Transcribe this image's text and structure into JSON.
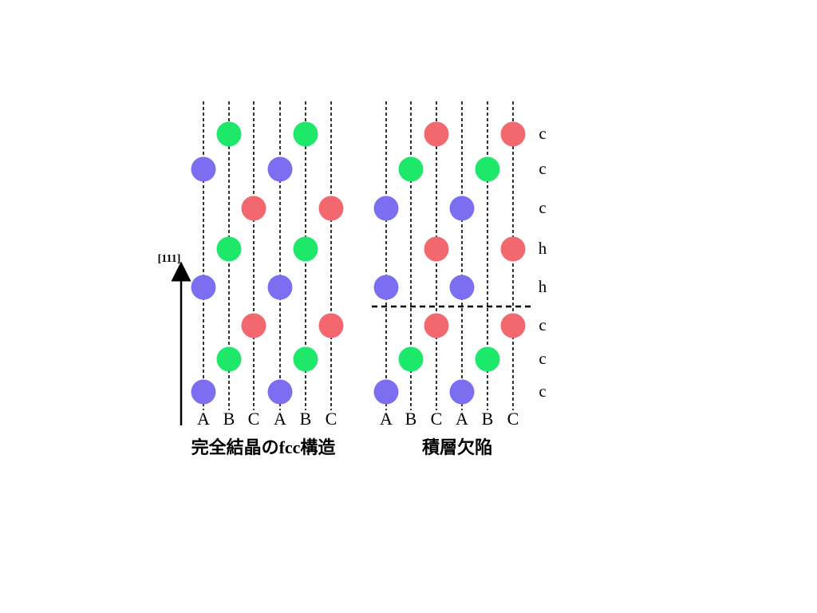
{
  "axis": {
    "label": "[111]"
  },
  "colors": {
    "A": "#7b6ef0",
    "B": "#1ee86a",
    "C": "#f2686e"
  },
  "panels": [
    {
      "id": "perfect",
      "caption": "完全結晶のfcc構造",
      "columns": [
        "A",
        "B",
        "C",
        "A",
        "B",
        "C"
      ],
      "layers_bottom_to_top": [
        "A",
        "B",
        "C",
        "A",
        "B",
        "C",
        "A",
        "B"
      ],
      "layer_types_bottom_to_top": []
    },
    {
      "id": "stacking-fault",
      "caption": "積層欠陥",
      "columns": [
        "A",
        "B",
        "C",
        "A",
        "B",
        "C"
      ],
      "layers_bottom_to_top": [
        "A",
        "B",
        "C",
        "A",
        "C",
        "A",
        "B",
        "C"
      ],
      "layer_types_bottom_to_top": [
        "c",
        "c",
        "c",
        "h",
        "h",
        "c",
        "c",
        "c"
      ],
      "fault_after_layer": 3
    }
  ]
}
